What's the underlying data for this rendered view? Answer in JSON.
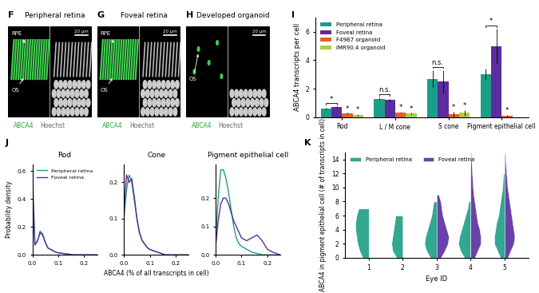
{
  "panels": [
    {
      "letter": "F",
      "title": "Peripheral retina",
      "arrows": [
        "RPE",
        "OS"
      ],
      "stain_labels": [
        "ABCA4",
        "Hoechst"
      ],
      "scale_bar": "20 µm"
    },
    {
      "letter": "G",
      "title": "Foveal retina",
      "arrows": [
        "RPE",
        "OS"
      ],
      "stain_labels": [
        "ABCA4",
        "Hoechst"
      ],
      "scale_bar": "20 µm"
    },
    {
      "letter": "H",
      "title": "Developed organoid",
      "arrows": [
        "OS"
      ],
      "stain_labels": [
        "ABCA4",
        "Hoechst"
      ],
      "scale_bar": "20 µm"
    }
  ],
  "chart_data": [
    {
      "panel": "I",
      "type": "bar",
      "categories": [
        "Rod",
        "L / M cone",
        "S cone",
        "Pigment epithelial cell"
      ],
      "series": [
        {
          "name": "Peripheral retina",
          "color": "#1b9e86",
          "values": [
            0.6,
            1.3,
            2.7,
            3.0
          ],
          "errors": [
            0.05,
            0.08,
            0.6,
            0.4
          ]
        },
        {
          "name": "Foveal retina",
          "color": "#5a2ca0",
          "values": [
            0.7,
            1.2,
            2.5,
            5.0
          ],
          "errors": [
            0.05,
            0.1,
            0.8,
            1.2
          ]
        },
        {
          "name": "F49B7 organoid",
          "color": "#e0622a",
          "values": [
            0.25,
            0.35,
            0.2,
            0.1
          ],
          "errors": [
            0.05,
            0.05,
            0.2,
            0.05
          ]
        },
        {
          "name": "IMR90.4 organoid",
          "color": "#a6cf4a",
          "values": [
            0.15,
            0.25,
            0.3,
            null
          ],
          "errors": [
            0.05,
            0.05,
            0.2,
            null
          ]
        }
      ],
      "ylabel": "ABCA4 transcripts per cell",
      "ylim": [
        0,
        7
      ],
      "yticks": [
        0,
        2,
        4,
        6
      ],
      "legend": "upper left",
      "annotations": [
        {
          "category": "Rod",
          "series": [
            "Peripheral retina",
            "Foveal retina"
          ],
          "text": "*"
        },
        {
          "category": "Rod",
          "series": [
            "F49B7 organoid"
          ],
          "text": "*"
        },
        {
          "category": "Rod",
          "series": [
            "IMR90.4 organoid"
          ],
          "text": "*"
        },
        {
          "category": "L / M cone",
          "series": [
            "Peripheral retina",
            "Foveal retina"
          ],
          "text": "n.s."
        },
        {
          "category": "L / M cone",
          "series": [
            "F49B7 organoid"
          ],
          "text": "*"
        },
        {
          "category": "L / M cone",
          "series": [
            "IMR90.4 organoid"
          ],
          "text": "*"
        },
        {
          "category": "S cone",
          "series": [
            "Peripheral retina",
            "Foveal retina"
          ],
          "text": "n.s."
        },
        {
          "category": "S cone",
          "series": [
            "F49B7 organoid"
          ],
          "text": "*"
        },
        {
          "category": "S cone",
          "series": [
            "IMR90.4 organoid"
          ],
          "text": "*"
        },
        {
          "category": "Pigment epithelial cell",
          "series": [
            "Peripheral retina",
            "Foveal retina"
          ],
          "text": "*"
        },
        {
          "category": "Pigment epithelial cell",
          "series": [
            "F49B7 organoid"
          ],
          "text": "*"
        }
      ]
    },
    {
      "panel": "J",
      "type": "line",
      "title": "Rod",
      "ylabel": "Probability density",
      "x": [
        0,
        0.01,
        0.02,
        0.03,
        0.04,
        0.05,
        0.06,
        0.07,
        0.08,
        0.09,
        0.1,
        0.12,
        0.14,
        0.16,
        0.18,
        0.2,
        0.22,
        0.25
      ],
      "series": [
        {
          "name": "Peripheral retina",
          "color": "#1b9e86",
          "values": [
            0.62,
            0.08,
            0.1,
            0.17,
            0.15,
            0.09,
            0.05,
            0.04,
            0.03,
            0.02,
            0.015,
            0.01,
            0.005,
            0,
            0,
            0,
            0,
            0
          ]
        },
        {
          "name": "Foveal retina",
          "color": "#5a2ca0",
          "values": [
            0.5,
            0.07,
            0.1,
            0.16,
            0.14,
            0.09,
            0.05,
            0.04,
            0.03,
            0.02,
            0.015,
            0.01,
            0.005,
            0,
            0,
            0,
            0,
            0
          ]
        }
      ],
      "xlim": [
        0,
        0.25
      ],
      "xticks": [
        {
          "value": 0,
          "label": "0.0"
        },
        {
          "value": 0.1,
          "label": "0.1"
        },
        {
          "value": 0.2,
          "label": "0.2"
        }
      ],
      "ylim": [
        0,
        0.65
      ],
      "yticks": [
        {
          "value": 0,
          "label": "0.0"
        },
        {
          "value": 0.2,
          "label": "0.2"
        },
        {
          "value": 0.4,
          "label": "0.4"
        },
        {
          "value": 0.6,
          "label": "0.6"
        }
      ],
      "legend": "upper right"
    },
    {
      "type": "line",
      "title": "Cone",
      "xlabel": "ABCA4 (% of all transcripts in cell)",
      "x": [
        0,
        0.01,
        0.02,
        0.03,
        0.04,
        0.05,
        0.06,
        0.07,
        0.08,
        0.09,
        0.1,
        0.12,
        0.14,
        0.16,
        0.18,
        0.2,
        0.22,
        0.25
      ],
      "series": [
        {
          "name": "Peripheral retina",
          "color": "#1b9e86",
          "values": [
            0.1,
            0.18,
            0.22,
            0.2,
            0.15,
            0.1,
            0.06,
            0.04,
            0.03,
            0.02,
            0.015,
            0.01,
            0.005,
            0,
            0,
            0,
            0,
            0
          ]
        },
        {
          "name": "Foveal retina",
          "color": "#5a2ca0",
          "values": [
            0.12,
            0.22,
            0.2,
            0.21,
            0.16,
            0.1,
            0.06,
            0.04,
            0.03,
            0.02,
            0.015,
            0.01,
            0.005,
            0,
            0,
            0,
            0,
            0
          ]
        }
      ],
      "xlim": [
        0,
        0.25
      ],
      "xticks": [
        {
          "value": 0,
          "label": "0.0"
        },
        {
          "value": 0.1,
          "label": "0.1"
        },
        {
          "value": 0.2,
          "label": "0.2"
        }
      ],
      "ylim": [
        0,
        0.25
      ],
      "yticks": [
        {
          "value": 0,
          "label": "0.0"
        },
        {
          "value": 0.1,
          "label": "0.1"
        },
        {
          "value": 0.2,
          "label": "0.2"
        }
      ]
    },
    {
      "type": "line",
      "title": "Pigment epithelial cell",
      "x": [
        0,
        0.01,
        0.02,
        0.03,
        0.04,
        0.05,
        0.06,
        0.07,
        0.08,
        0.09,
        0.1,
        0.12,
        0.14,
        0.16,
        0.18,
        0.2,
        0.22,
        0.25
      ],
      "series": [
        {
          "name": "Peripheral retina",
          "color": "#1b9e86",
          "values": [
            0.05,
            0.2,
            0.3,
            0.3,
            0.27,
            0.22,
            0.16,
            0.1,
            0.06,
            0.04,
            0.03,
            0.02,
            0.01,
            0.005,
            0,
            0,
            0,
            0
          ]
        },
        {
          "name": "Foveal retina",
          "color": "#5a2ca0",
          "values": [
            0.03,
            0.12,
            0.18,
            0.2,
            0.2,
            0.18,
            0.15,
            0.12,
            0.1,
            0.08,
            0.06,
            0.05,
            0.06,
            0.07,
            0.05,
            0.02,
            0.01,
            0
          ]
        }
      ],
      "xlim": [
        0,
        0.25
      ],
      "xticks": [
        {
          "value": 0,
          "label": "0.0"
        },
        {
          "value": 0.1,
          "label": "0.1"
        },
        {
          "value": 0.2,
          "label": "0.2"
        }
      ],
      "ylim": [
        0,
        0.32
      ],
      "yticks": [
        {
          "value": 0,
          "label": "0.0"
        },
        {
          "value": 0.1,
          "label": "0.1"
        },
        {
          "value": 0.2,
          "label": "0.2"
        }
      ]
    },
    {
      "panel": "K",
      "type": "violin",
      "categories": [
        "1",
        "2",
        "3",
        "4",
        "5"
      ],
      "xlabel": "Eye ID",
      "ylabel": "ABCA4 in pigment epithelial cell (# of transcripts in cell)",
      "y_grid": [
        0,
        1,
        2,
        3,
        4,
        5,
        6,
        7,
        8,
        9,
        10,
        11,
        12,
        13,
        14,
        15
      ],
      "series": [
        {
          "name": "Peripheral retina",
          "color": "#1b9e86",
          "density": [
            [
              0.3,
              0.45,
              0.55,
              0.6,
              0.65,
              0.65,
              0.6,
              0.5,
              null,
              null,
              null,
              null,
              null,
              null,
              null,
              null
            ],
            [
              0.3,
              0.5,
              0.55,
              0.5,
              0.45,
              0.4,
              0.35,
              null,
              null,
              null,
              null,
              null,
              null,
              null,
              null,
              null
            ],
            [
              0.3,
              0.5,
              0.6,
              0.55,
              0.45,
              0.35,
              0.25,
              0.2,
              0.15,
              null,
              null,
              null,
              null,
              null,
              null,
              null
            ],
            [
              0.3,
              0.5,
              0.6,
              0.55,
              0.45,
              0.35,
              0.25,
              0.15,
              0.1,
              null,
              null,
              null,
              null,
              null,
              null,
              null
            ],
            [
              0.2,
              0.35,
              0.5,
              0.5,
              0.45,
              0.4,
              0.3,
              0.25,
              0.2,
              0.15,
              0.1,
              0.08,
              0.05,
              null,
              null,
              null
            ]
          ]
        },
        {
          "name": "Foveal retina",
          "color": "#5a2ca0",
          "density": [
            null,
            null,
            [
              0.2,
              0.4,
              0.55,
              0.6,
              0.5,
              0.4,
              0.3,
              0.25,
              0.2,
              0.1,
              null,
              null,
              null,
              null,
              null,
              null
            ],
            [
              0.2,
              0.35,
              0.5,
              0.5,
              0.45,
              0.35,
              0.3,
              0.25,
              0.2,
              0.15,
              0.12,
              0.1,
              0.08,
              0.06,
              0.04,
              0.02
            ],
            [
              0.15,
              0.3,
              0.45,
              0.5,
              0.45,
              0.4,
              0.35,
              0.3,
              0.25,
              0.2,
              0.15,
              0.12,
              0.1,
              0.07,
              0.05,
              0.03
            ]
          ]
        }
      ],
      "ylim": [
        0,
        15
      ],
      "yticks": [
        0,
        2,
        4,
        6,
        8,
        10,
        12,
        14
      ],
      "legend": "upper left"
    }
  ]
}
